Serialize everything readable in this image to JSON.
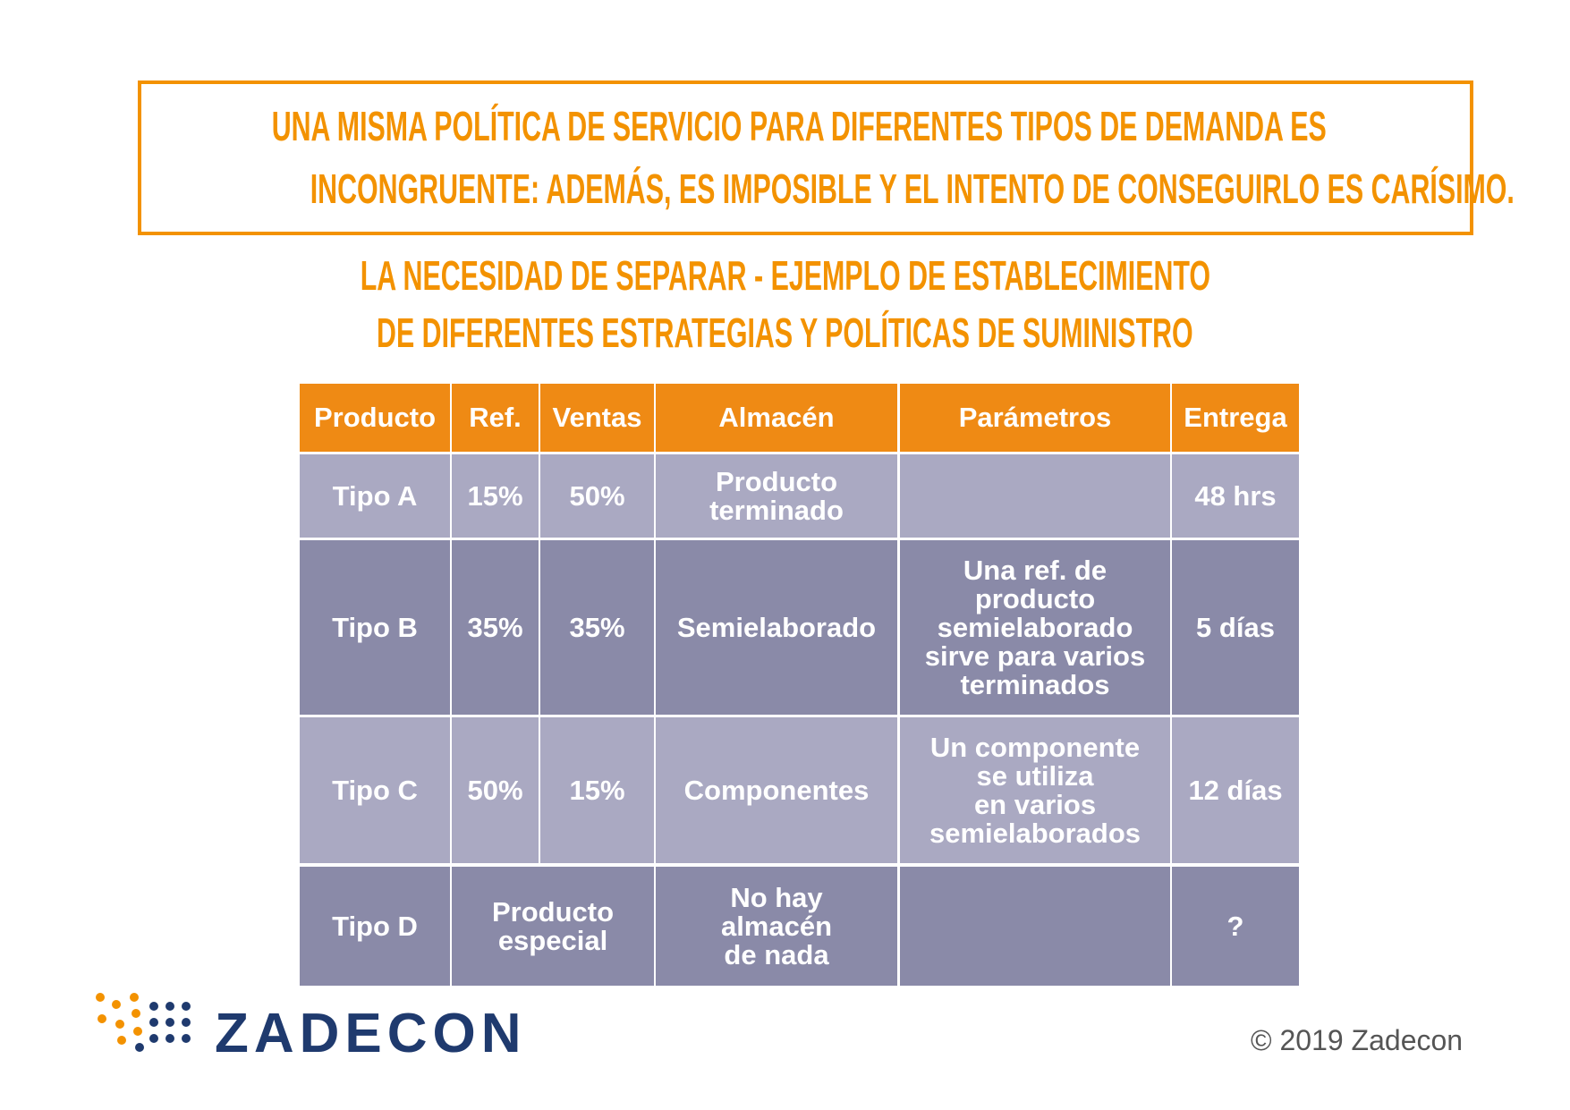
{
  "header": {
    "title_lines": [
      "UNA MISMA POLÍTICA DE SERVICIO PARA DIFERENTES TIPOS DE DEMANDA ES",
      "INCONGRUENTE: ADEMÁS, ES IMPOSIBLE Y EL INTENTO DE CONSEGUIRLO ES CARÍSIMO."
    ],
    "subtitle_lines": [
      "LA NECESIDAD DE SEPARAR - EJEMPLO DE ESTABLECIMIENTO",
      "DE DIFERENTES ESTRATEGIAS Y POLÍTICAS DE SUMINISTRO"
    ]
  },
  "table": {
    "headers": [
      "Producto",
      "Ref.",
      "Ventas",
      "Almacén",
      "Parámetros",
      "Entrega"
    ],
    "rows": [
      {
        "producto": [
          "Tipo A"
        ],
        "ref": [
          "15%"
        ],
        "ventas": [
          "50%"
        ],
        "almacen": [
          "Producto",
          "terminado"
        ],
        "entrega": [
          "48 hrs"
        ]
      },
      {
        "producto": [
          "Tipo B"
        ],
        "ref": [
          "35%"
        ],
        "ventas": [
          "35%"
        ],
        "almacen": [
          "Semielaborado"
        ],
        "parametros": [
          "Una ref. de",
          "producto",
          "semielaborado",
          "sirve para varios",
          "terminados"
        ],
        "entrega": [
          "5 días"
        ]
      },
      {
        "producto": [
          "Tipo C"
        ],
        "ref": [
          "50%"
        ],
        "ventas": [
          "15%"
        ],
        "almacen": [
          "Componentes"
        ],
        "parametros": [
          "Un componente",
          "se utiliza",
          "en varios",
          "semielaborados"
        ],
        "entrega": [
          "12 días"
        ]
      },
      {
        "producto": [
          "Tipo D"
        ],
        "ref_ventas": [
          "Producto",
          "especial"
        ],
        "almacen": [
          "No hay",
          "almacén",
          "de nada"
        ],
        "entrega": [
          "?"
        ]
      }
    ]
  },
  "footer": {
    "logo": "ZADECON",
    "copyright": "© 2019 Zadecon"
  }
}
